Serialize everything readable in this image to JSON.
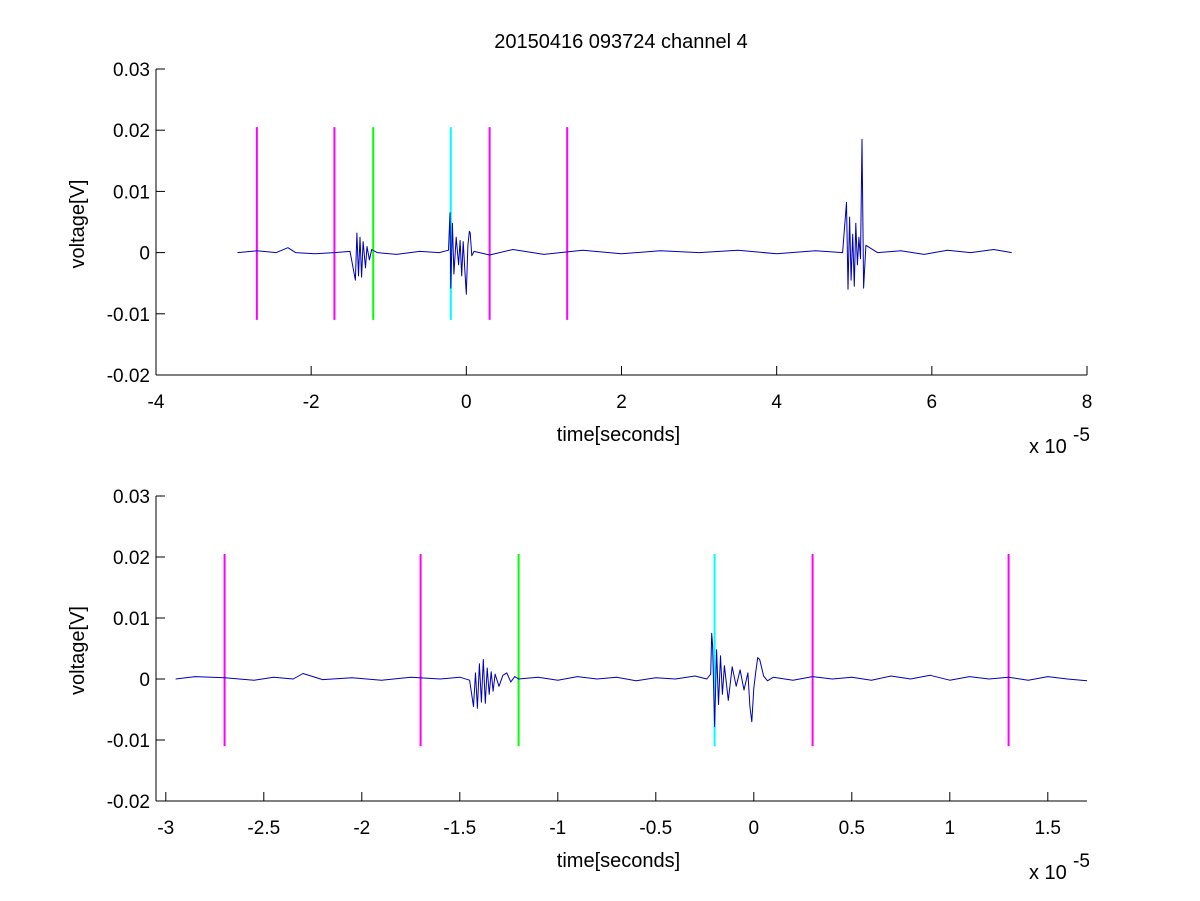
{
  "figure": {
    "title": "20150416 093724 channel 4"
  },
  "chart_data": [
    {
      "type": "line",
      "xlabel": "time[seconds]",
      "ylabel": "voltage[V]",
      "x_exponent_base": "x 10",
      "x_exponent_power": "-5",
      "xlim": [
        -4,
        8
      ],
      "ylim": [
        -0.02,
        0.03
      ],
      "xticks": [
        -4,
        -2,
        0,
        2,
        4,
        6,
        8
      ],
      "xtick_labels": [
        "-4",
        "-2",
        "0",
        "2",
        "4",
        "6",
        "8"
      ],
      "yticks": [
        -0.02,
        -0.01,
        0,
        0.01,
        0.02,
        0.03
      ],
      "ytick_labels": [
        "-0.02",
        "-0.01",
        "0",
        "0.01",
        "0.02",
        "0.03"
      ],
      "grid": false,
      "series": [
        {
          "color": "#0000b4",
          "x": [
            -2.95,
            -2.7,
            -2.45,
            -2.3,
            -2.2,
            -1.95,
            -1.7,
            -1.5,
            -1.43,
            -1.41,
            -1.39,
            -1.37,
            -1.35,
            -1.33,
            -1.3,
            -1.28,
            -1.25,
            -1.22,
            -1.15,
            -0.9,
            -0.6,
            -0.35,
            -0.23,
            -0.21,
            -0.2,
            -0.18,
            -0.16,
            -0.13,
            -0.1,
            -0.08,
            -0.06,
            -0.04,
            -0.02,
            0.0,
            0.02,
            0.04,
            0.05,
            0.07,
            0.1,
            0.3,
            0.6,
            1.0,
            1.5,
            2.0,
            2.5,
            3.0,
            3.5,
            4.0,
            4.5,
            4.85,
            4.9,
            4.92,
            4.94,
            4.96,
            4.98,
            5.0,
            5.02,
            5.04,
            5.06,
            5.08,
            5.1,
            5.12,
            5.15,
            5.3,
            5.6,
            5.9,
            6.2,
            6.5,
            6.8,
            7.03
          ],
          "y": [
            0.0,
            0.0003,
            0.0,
            0.0008,
            0.0,
            -0.0002,
            0.0,
            0.0002,
            -0.0045,
            0.0032,
            -0.0038,
            0.0025,
            -0.004,
            0.0018,
            -0.0025,
            0.001,
            -0.0012,
            0.0005,
            0.0,
            -0.0003,
            0.0002,
            0.0,
            0.0004,
            0.0065,
            -0.0058,
            0.0048,
            -0.0035,
            0.0025,
            -0.002,
            0.002,
            -0.0038,
            0.0018,
            -0.0028,
            -0.0068,
            0.0012,
            0.0035,
            0.0032,
            -0.0005,
            0.0002,
            -0.0004,
            0.0005,
            -0.0003,
            0.0004,
            -0.0002,
            0.0003,
            0.0,
            0.0004,
            -0.0002,
            0.0003,
            0.0,
            0.0082,
            -0.006,
            0.0058,
            -0.0045,
            0.003,
            -0.0055,
            0.0048,
            -0.002,
            0.0025,
            -0.001,
            0.0185,
            -0.0058,
            0.0012,
            0.0,
            0.0003,
            -0.0003,
            0.0004,
            0.0,
            0.0005,
            0.0
          ]
        }
      ],
      "markers": [
        {
          "x": -2.7,
          "ymin": -0.011,
          "ymax": 0.0205,
          "color": "#ff00ff"
        },
        {
          "x": -1.7,
          "ymin": -0.011,
          "ymax": 0.0205,
          "color": "#ff00ff"
        },
        {
          "x": -1.2,
          "ymin": -0.011,
          "ymax": 0.0205,
          "color": "#00ff00"
        },
        {
          "x": -0.2,
          "ymin": -0.011,
          "ymax": 0.0205,
          "color": "#00ffff"
        },
        {
          "x": 0.3,
          "ymin": -0.011,
          "ymax": 0.0205,
          "color": "#ff00ff"
        },
        {
          "x": 1.3,
          "ymin": -0.011,
          "ymax": 0.0205,
          "color": "#ff00ff"
        }
      ]
    },
    {
      "type": "line",
      "xlabel": "time[seconds]",
      "ylabel": "voltage[V]",
      "x_exponent_base": "x 10",
      "x_exponent_power": "-5",
      "xlim": [
        -3.05,
        1.7
      ],
      "ylim": [
        -0.02,
        0.03
      ],
      "xticks": [
        -3,
        -2.5,
        -2,
        -1.5,
        -1,
        -0.5,
        0,
        0.5,
        1,
        1.5
      ],
      "xtick_labels": [
        "-3",
        "-2.5",
        "-2",
        "-1.5",
        "-1",
        "-0.5",
        "0",
        "0.5",
        "1",
        "1.5"
      ],
      "yticks": [
        -0.02,
        -0.01,
        0,
        0.01,
        0.02,
        0.03
      ],
      "ytick_labels": [
        "-0.02",
        "-0.01",
        "0",
        "0.01",
        "0.02",
        "0.03"
      ],
      "grid": false,
      "series": [
        {
          "color": "#0000b4",
          "x": [
            -2.95,
            -2.85,
            -2.7,
            -2.55,
            -2.45,
            -2.35,
            -2.3,
            -2.2,
            -2.05,
            -1.9,
            -1.75,
            -1.6,
            -1.5,
            -1.45,
            -1.43,
            -1.42,
            -1.41,
            -1.4,
            -1.39,
            -1.38,
            -1.37,
            -1.36,
            -1.35,
            -1.34,
            -1.33,
            -1.32,
            -1.3,
            -1.28,
            -1.26,
            -1.24,
            -1.22,
            -1.2,
            -1.1,
            -1.0,
            -0.9,
            -0.8,
            -0.7,
            -0.6,
            -0.5,
            -0.4,
            -0.3,
            -0.24,
            -0.22,
            -0.215,
            -0.21,
            -0.2,
            -0.19,
            -0.18,
            -0.17,
            -0.16,
            -0.15,
            -0.13,
            -0.11,
            -0.09,
            -0.07,
            -0.05,
            -0.03,
            -0.02,
            -0.01,
            0.0,
            0.01,
            0.02,
            0.03,
            0.05,
            0.07,
            0.1,
            0.2,
            0.3,
            0.4,
            0.5,
            0.6,
            0.7,
            0.8,
            0.9,
            1.0,
            1.1,
            1.2,
            1.3,
            1.4,
            1.5,
            1.6,
            1.7
          ],
          "y": [
            0.0,
            0.0004,
            0.0002,
            -0.0002,
            0.0003,
            0.0,
            0.0009,
            -0.0001,
            0.0002,
            -0.0002,
            0.0003,
            0.0,
            0.0003,
            -0.0002,
            -0.0045,
            0.001,
            -0.0048,
            0.0025,
            -0.0038,
            0.0032,
            -0.004,
            0.0018,
            -0.0025,
            0.0012,
            -0.002,
            0.0008,
            -0.0012,
            0.0006,
            0.001,
            -0.0005,
            0.0004,
            0.0,
            0.0003,
            -0.0002,
            0.0004,
            0.0,
            0.0003,
            -0.0003,
            0.0002,
            0.0,
            0.0005,
            0.0,
            0.0008,
            0.0075,
            0.0055,
            -0.0078,
            0.0048,
            -0.0042,
            0.0038,
            -0.0025,
            0.0022,
            -0.0035,
            0.002,
            -0.0012,
            0.0015,
            -0.0018,
            0.001,
            -0.0045,
            -0.007,
            -0.0015,
            0.0012,
            0.0035,
            0.0032,
            0.0005,
            -0.0003,
            0.0003,
            -0.0002,
            0.0004,
            0.0,
            0.0003,
            -0.0002,
            0.0005,
            0.0,
            0.0006,
            -0.0002,
            0.0004,
            0.0,
            0.0003,
            -0.0002,
            0.0004,
            0.0,
            -0.0003
          ]
        }
      ],
      "markers": [
        {
          "x": -2.7,
          "ymin": -0.011,
          "ymax": 0.0205,
          "color": "#ff00ff"
        },
        {
          "x": -1.7,
          "ymin": -0.011,
          "ymax": 0.0205,
          "color": "#ff00ff"
        },
        {
          "x": -1.2,
          "ymin": -0.011,
          "ymax": 0.0205,
          "color": "#00ff00"
        },
        {
          "x": -0.2,
          "ymin": -0.011,
          "ymax": 0.0205,
          "color": "#00ffff"
        },
        {
          "x": 0.3,
          "ymin": -0.011,
          "ymax": 0.0205,
          "color": "#ff00ff"
        },
        {
          "x": 1.3,
          "ymin": -0.011,
          "ymax": 0.0205,
          "color": "#ff00ff"
        }
      ]
    }
  ]
}
